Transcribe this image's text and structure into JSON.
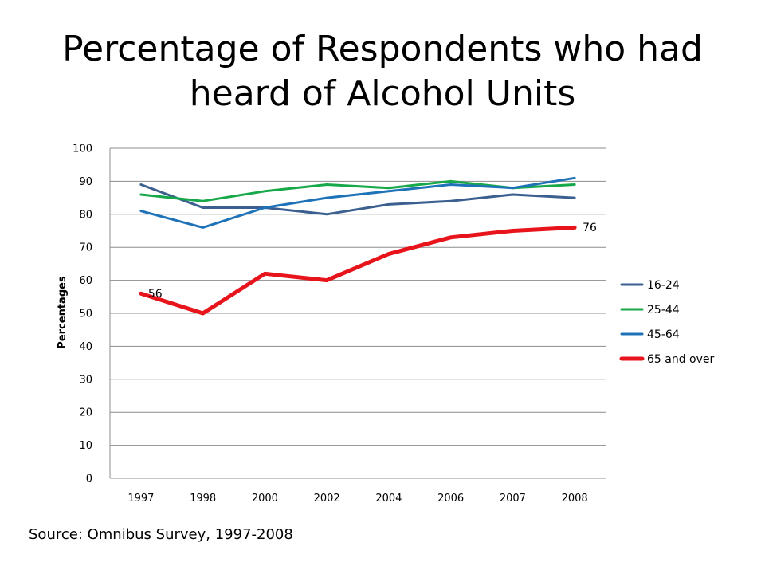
{
  "slide": {
    "title_line1": "Percentage of Respondents who had",
    "title_line2": "heard of Alcohol Units",
    "source": "Source: Omnibus Survey, 1997-2008"
  },
  "chart_data": {
    "type": "line",
    "title": "Percentage of Respondents who had heard of Alcohol Units",
    "xlabel": "",
    "ylabel": "Percentages",
    "categories": [
      "1997",
      "1998",
      "2000",
      "2002",
      "2004",
      "2006",
      "2007",
      "2008"
    ],
    "ylim": [
      0,
      100
    ],
    "yticks": [
      "0",
      "10",
      "20",
      "30",
      "40",
      "50",
      "60",
      "70",
      "80",
      "90",
      "100"
    ],
    "grid": true,
    "legend_position": "right",
    "series": [
      {
        "name": "16-24",
        "values": [
          89,
          82,
          82,
          80,
          83,
          84,
          86,
          85
        ],
        "color": "#3b5f8f",
        "width": 3
      },
      {
        "name": "25-44",
        "values": [
          86,
          84,
          87,
          89,
          88,
          90,
          88,
          89
        ],
        "color": "#17a84a",
        "width": 3
      },
      {
        "name": "45-64",
        "values": [
          81,
          76,
          82,
          85,
          87,
          89,
          88,
          91
        ],
        "color": "#1e72b8",
        "width": 3
      },
      {
        "name": "65 and over",
        "values": [
          56,
          50,
          62,
          60,
          68,
          73,
          75,
          76
        ],
        "color": "#e8141c",
        "width": 5
      }
    ],
    "annotations": [
      {
        "series": "65 and over",
        "category": "1997",
        "text": "56"
      },
      {
        "series": "65 and over",
        "category": "2008",
        "text": "76"
      }
    ]
  }
}
